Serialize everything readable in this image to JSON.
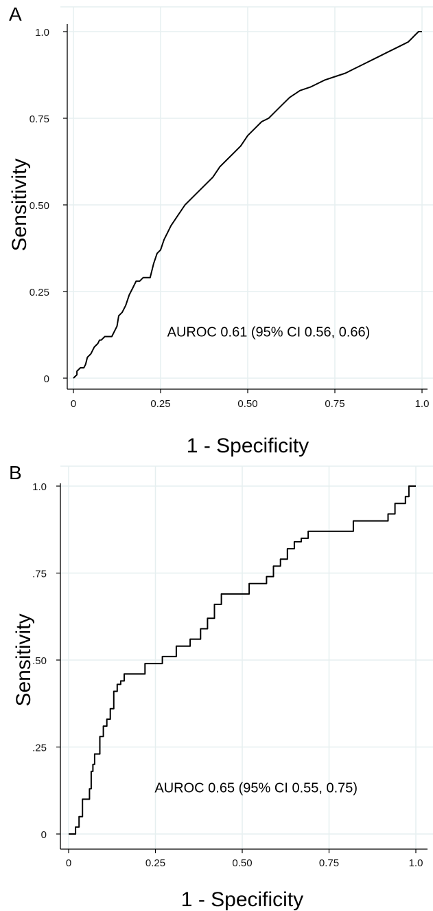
{
  "chart_data": [
    {
      "type": "line",
      "panel_label": "A",
      "xlabel": "1 -  Specificity",
      "ylabel": "Sensitivity",
      "xlim": [
        0,
        1
      ],
      "ylim": [
        0,
        1
      ],
      "xticks": [
        0,
        0.25,
        0.5,
        0.75,
        1.0
      ],
      "xtick_labels": [
        "0",
        "0.25",
        "0.50",
        "0.75",
        "1.0"
      ],
      "yticks": [
        0,
        0.25,
        0.5,
        0.75,
        1.0
      ],
      "ytick_labels": [
        "0",
        "0.25",
        "0.50",
        "0.75",
        "1.0"
      ],
      "grid": true,
      "annotation": "AUROC 0.61 (95% CI 0.56, 0.66)",
      "annotation_at": [
        0.56,
        0.12
      ],
      "series": [
        {
          "step": false,
          "x": [
            0,
            0.01,
            0.01,
            0.02,
            0.03,
            0.035,
            0.04,
            0.05,
            0.055,
            0.06,
            0.07,
            0.075,
            0.08,
            0.09,
            0.1,
            0.11,
            0.12,
            0.125,
            0.13,
            0.14,
            0.15,
            0.16,
            0.17,
            0.175,
            0.18,
            0.19,
            0.2,
            0.22,
            0.23,
            0.24,
            0.25,
            0.26,
            0.27,
            0.28,
            0.3,
            0.32,
            0.34,
            0.36,
            0.38,
            0.4,
            0.42,
            0.44,
            0.46,
            0.48,
            0.5,
            0.52,
            0.54,
            0.56,
            0.58,
            0.6,
            0.62,
            0.65,
            0.68,
            0.7,
            0.72,
            0.75,
            0.78,
            0.8,
            0.82,
            0.84,
            0.86,
            0.88,
            0.9,
            0.92,
            0.94,
            0.96,
            0.97,
            0.98,
            0.99,
            1.0
          ],
          "y": [
            0,
            0.01,
            0.02,
            0.03,
            0.03,
            0.04,
            0.06,
            0.07,
            0.08,
            0.09,
            0.1,
            0.11,
            0.11,
            0.12,
            0.12,
            0.12,
            0.14,
            0.15,
            0.18,
            0.19,
            0.21,
            0.24,
            0.26,
            0.27,
            0.28,
            0.28,
            0.29,
            0.29,
            0.33,
            0.36,
            0.37,
            0.4,
            0.42,
            0.44,
            0.47,
            0.5,
            0.52,
            0.54,
            0.56,
            0.58,
            0.61,
            0.63,
            0.65,
            0.67,
            0.7,
            0.72,
            0.74,
            0.75,
            0.77,
            0.79,
            0.81,
            0.83,
            0.84,
            0.85,
            0.86,
            0.87,
            0.88,
            0.89,
            0.9,
            0.91,
            0.92,
            0.93,
            0.94,
            0.95,
            0.96,
            0.97,
            0.98,
            0.99,
            1.0,
            1.0
          ]
        }
      ]
    },
    {
      "type": "line",
      "panel_label": "B",
      "xlabel": "1 -  Specificity",
      "ylabel": "Sensitivity",
      "xlim": [
        0,
        1
      ],
      "ylim": [
        0,
        1
      ],
      "xticks": [
        0,
        0.25,
        0.5,
        0.75,
        1.0
      ],
      "xtick_labels": [
        "0",
        "0.25",
        "0.50",
        "0.75",
        "1.0"
      ],
      "yticks": [
        0,
        0.25,
        0.5,
        0.75,
        1.0
      ],
      "ytick_labels": [
        "0",
        ".25",
        ".50",
        ".75",
        "1.0"
      ],
      "grid": true,
      "annotation": "AUROC 0.65 (95% CI 0.55, 0.75)",
      "annotation_at": [
        0.54,
        0.12
      ],
      "series": [
        {
          "step": true,
          "x": [
            0,
            0.02,
            0.03,
            0.04,
            0.05,
            0.06,
            0.065,
            0.07,
            0.075,
            0.08,
            0.09,
            0.1,
            0.11,
            0.12,
            0.13,
            0.135,
            0.14,
            0.15,
            0.16,
            0.2,
            0.22,
            0.25,
            0.27,
            0.29,
            0.31,
            0.33,
            0.35,
            0.36,
            0.38,
            0.4,
            0.42,
            0.44,
            0.46,
            0.5,
            0.52,
            0.55,
            0.57,
            0.59,
            0.61,
            0.63,
            0.65,
            0.67,
            0.69,
            0.71,
            0.73,
            0.75,
            0.77,
            0.79,
            0.82,
            0.84,
            0.86,
            0.88,
            0.9,
            0.92,
            0.94,
            0.96,
            0.97,
            0.98,
            1.0
          ],
          "y": [
            0,
            0.02,
            0.05,
            0.1,
            0.1,
            0.13,
            0.18,
            0.2,
            0.23,
            0.23,
            0.28,
            0.31,
            0.33,
            0.36,
            0.41,
            0.41,
            0.43,
            0.44,
            0.46,
            0.46,
            0.49,
            0.49,
            0.51,
            0.51,
            0.54,
            0.54,
            0.56,
            0.56,
            0.59,
            0.62,
            0.66,
            0.69,
            0.69,
            0.69,
            0.72,
            0.72,
            0.74,
            0.77,
            0.79,
            0.82,
            0.84,
            0.85,
            0.87,
            0.87,
            0.87,
            0.87,
            0.87,
            0.87,
            0.9,
            0.9,
            0.9,
            0.9,
            0.9,
            0.92,
            0.95,
            0.95,
            0.97,
            1.0,
            1.0
          ]
        }
      ]
    }
  ],
  "colors": {
    "line": "#000000",
    "grid": "#e6eff0",
    "frame": "#e6eff0",
    "axis": "#000000"
  }
}
